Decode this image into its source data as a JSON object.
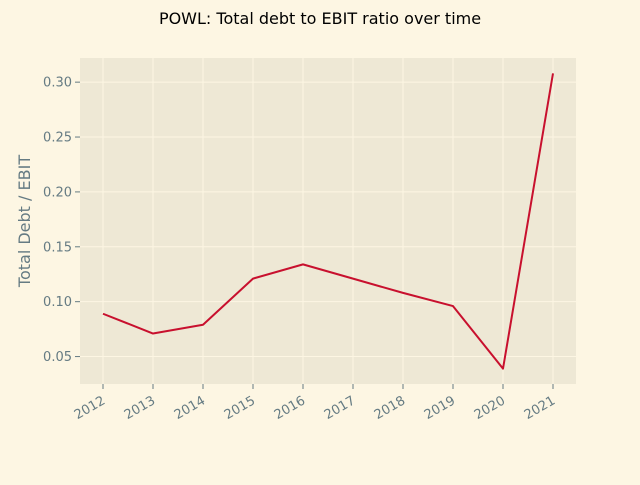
{
  "chart_data": {
    "type": "line",
    "title": "POWL: Total debt to EBIT ratio over time",
    "xlabel": "",
    "ylabel": "Total Debt / EBIT",
    "x": [
      "2012",
      "2013",
      "2014",
      "2015",
      "2016",
      "2017",
      "2018",
      "2019",
      "2020",
      "2021"
    ],
    "series": [
      {
        "values": [
          0.089,
          0.071,
          0.079,
          0.121,
          0.134,
          0.121,
          0.108,
          0.096,
          0.039,
          0.308
        ]
      }
    ],
    "ylim": [
      0.025,
      0.322
    ],
    "yticks": [
      0.05,
      0.1,
      0.15,
      0.2,
      0.25,
      0.3
    ],
    "ytick_labels": [
      "0.05",
      "0.10",
      "0.15",
      "0.20",
      "0.25",
      "0.30"
    ],
    "grid": true,
    "legend": "none",
    "colors": {
      "background": "#fdf6e3",
      "plot_background": "#eee8d5",
      "line": "#c8102e",
      "grid": "#fdf6e3",
      "tick_text": "#657b83"
    }
  }
}
